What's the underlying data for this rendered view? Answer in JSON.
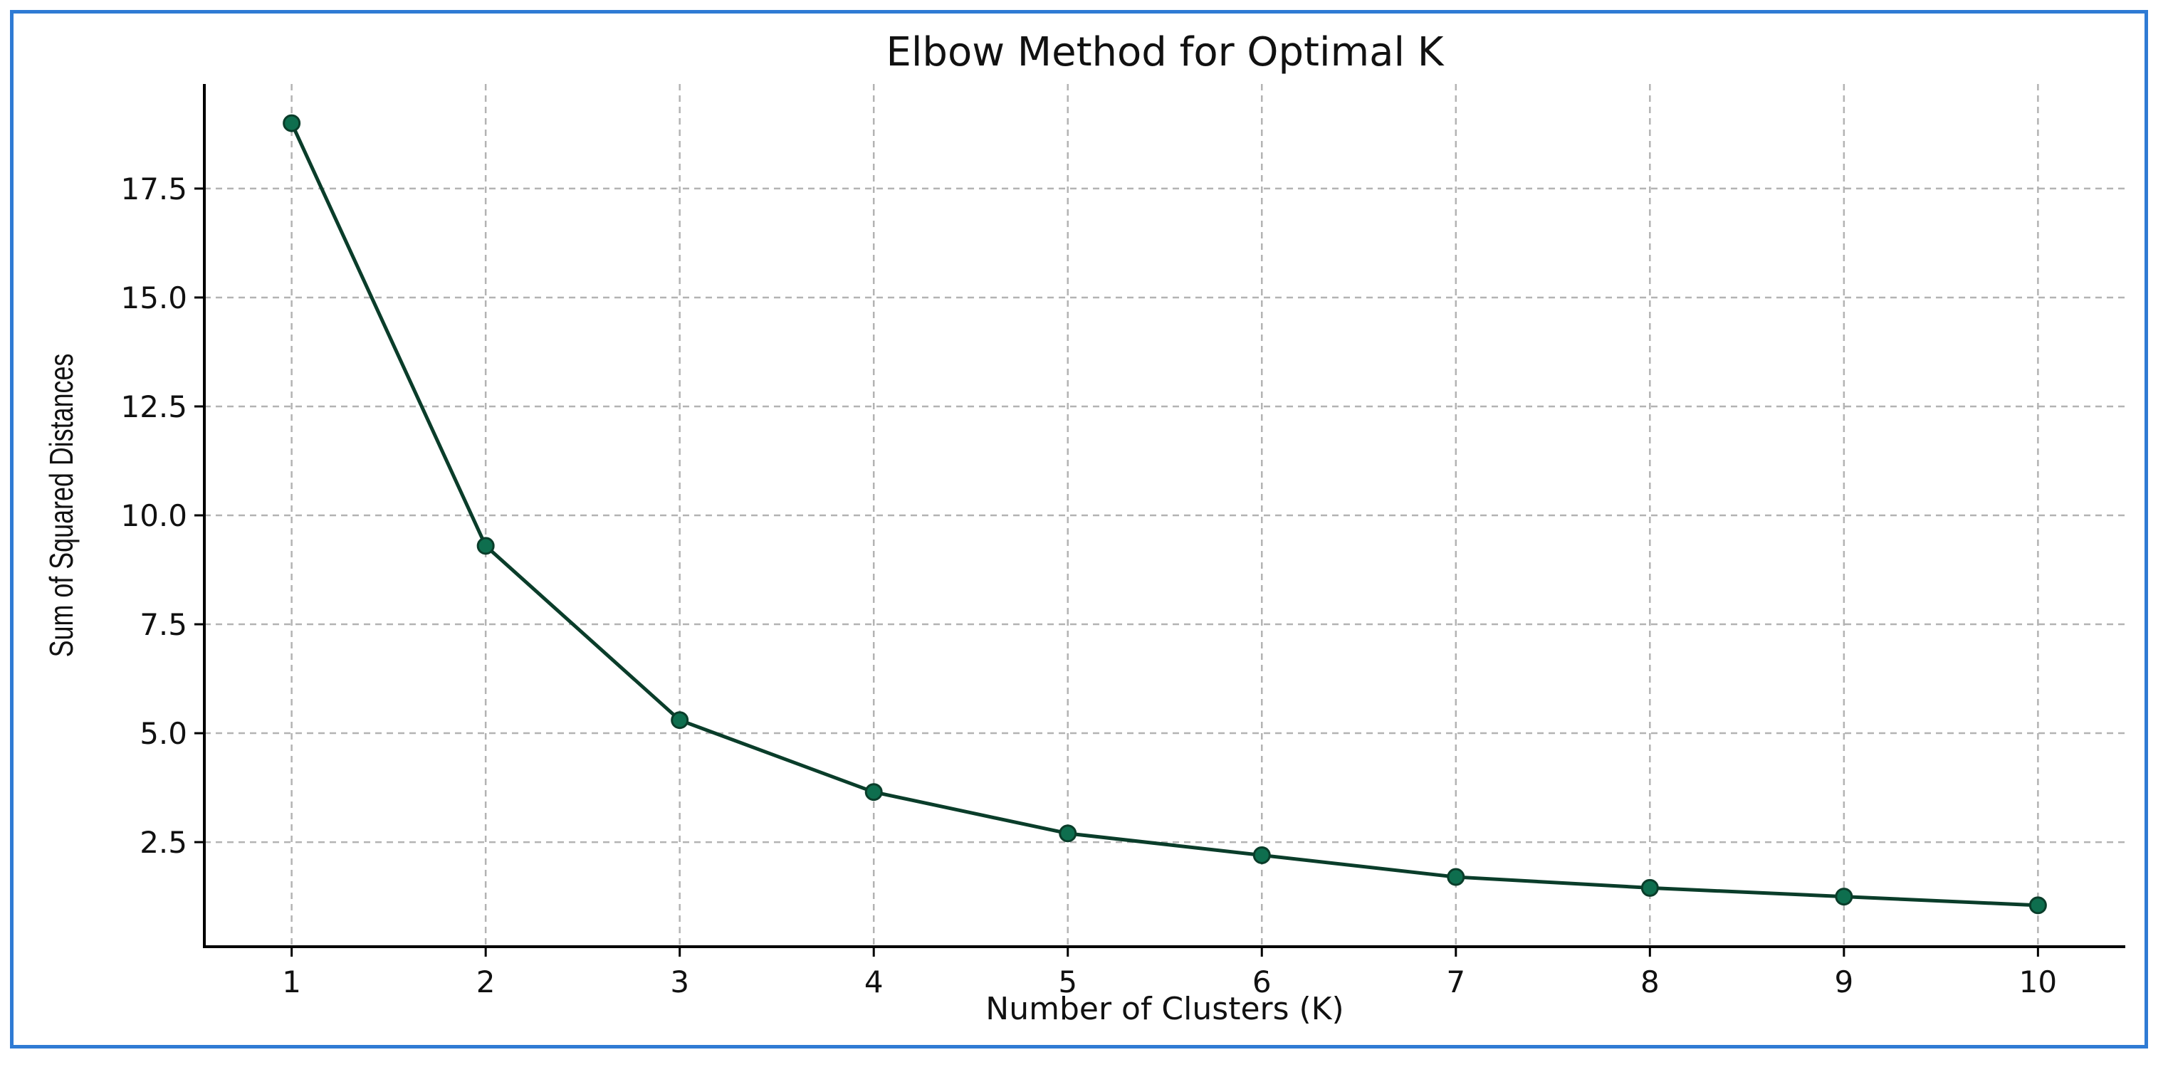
{
  "chart_data": {
    "type": "line",
    "title": "Elbow Method for Optimal K",
    "xlabel": "Number of Clusters (K)",
    "ylabel": "Sum of Squared Distances",
    "x": [
      1,
      2,
      3,
      4,
      5,
      6,
      7,
      8,
      9,
      10
    ],
    "series": [
      {
        "values": [
          19.0,
          9.3,
          5.3,
          3.65,
          2.7,
          2.2,
          1.7,
          1.45,
          1.25,
          1.05
        ]
      }
    ],
    "x_ticks": [
      "1",
      "2",
      "3",
      "4",
      "5",
      "6",
      "7",
      "8",
      "9",
      "10"
    ],
    "y_ticks": [
      2.5,
      5.0,
      7.5,
      10.0,
      12.5,
      15.0,
      17.5
    ],
    "y_tick_labels": [
      "2.5",
      "5.0",
      "7.5",
      "10.0",
      "12.5",
      "15.0",
      "17.5"
    ],
    "xlim": [
      0.55,
      10.45
    ],
    "ylim": [
      0.1,
      19.9
    ],
    "grid": true,
    "legend": "none",
    "line_color": "#0a3d2a",
    "marker_color": "#0e6e4e",
    "border_color": "#2f7bd4"
  }
}
